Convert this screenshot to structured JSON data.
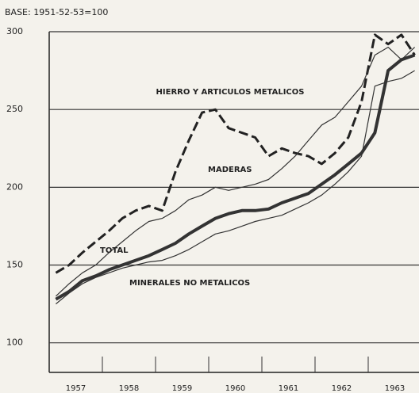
{
  "chart_data": {
    "type": "line",
    "subtitle": "BASE: 1951-52-53=100",
    "categories": [
      null,
      "1957",
      null,
      null,
      null,
      "1958",
      null,
      null,
      null,
      "1959",
      null,
      null,
      null,
      "1960",
      null,
      null,
      null,
      "1961",
      null,
      null,
      null,
      "1962",
      null,
      null,
      null,
      "1963",
      null,
      null
    ],
    "series": [
      {
        "name": "TOTAL",
        "color": "#333333",
        "width": 4,
        "dashed": false,
        "values": [
          128,
          133,
          140,
          143,
          147,
          150,
          153,
          156,
          160,
          164,
          170,
          175,
          180,
          183,
          185,
          185,
          186,
          190,
          193,
          196,
          202,
          208,
          215,
          222,
          235,
          275,
          282,
          285
        ]
      },
      {
        "name": "HIERRO Y ARTICULOS METALICOS",
        "color": "#222222",
        "width": 3,
        "dashed": true,
        "values": [
          145,
          150,
          158,
          165,
          172,
          180,
          185,
          188,
          185,
          210,
          230,
          248,
          250,
          238,
          235,
          232,
          220,
          225,
          222,
          220,
          215,
          222,
          232,
          255,
          298,
          292,
          298,
          285
        ]
      },
      {
        "name": "MADERAS",
        "color": "#333333",
        "width": 1.2,
        "dashed": false,
        "values": [
          130,
          138,
          145,
          150,
          158,
          165,
          172,
          178,
          180,
          185,
          192,
          195,
          200,
          198,
          200,
          202,
          205,
          212,
          220,
          230,
          240,
          245,
          255,
          265,
          285,
          290,
          282,
          290
        ]
      },
      {
        "name": "MINERALES NO METALICOS",
        "color": "#333333",
        "width": 1.2,
        "dashed": false,
        "values": [
          125,
          132,
          138,
          142,
          145,
          148,
          150,
          152,
          153,
          156,
          160,
          165,
          170,
          172,
          175,
          178,
          180,
          182,
          186,
          190,
          195,
          202,
          210,
          220,
          265,
          268,
          270,
          275
        ]
      }
    ],
    "ylim": [
      81,
      300
    ],
    "yticks": [
      100,
      150,
      200,
      250,
      300
    ],
    "grid": true
  }
}
